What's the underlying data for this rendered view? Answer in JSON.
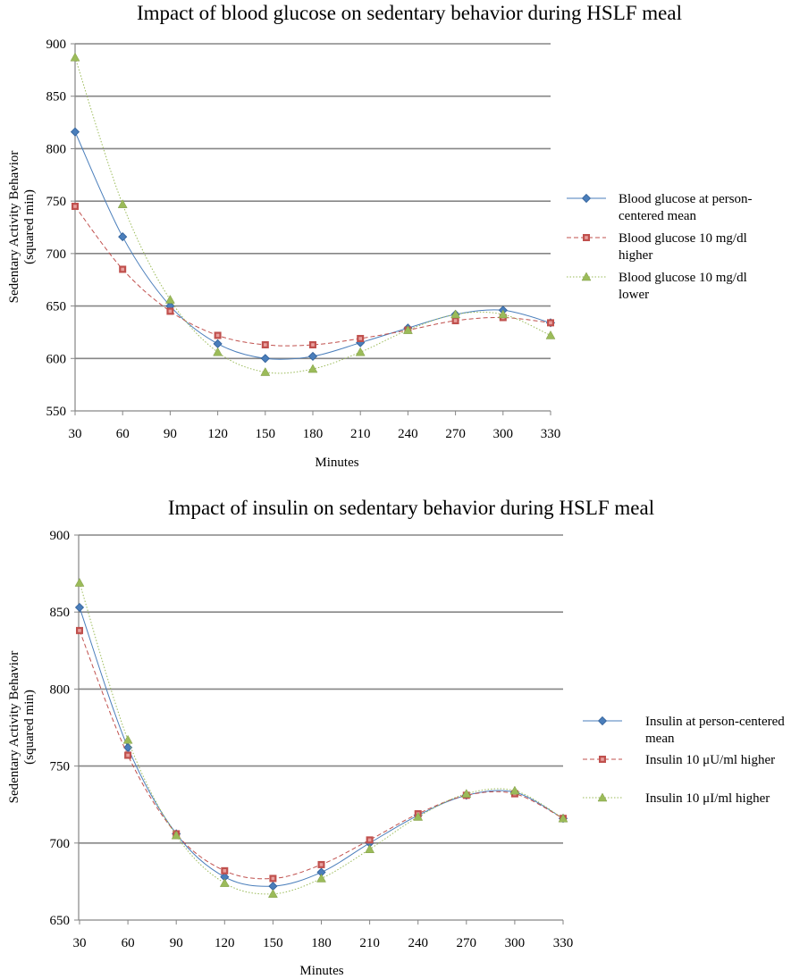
{
  "chart_data": [
    {
      "type": "line",
      "title": "Impact of blood glucose on sedentary behavior during HSLF meal",
      "xlabel": "Minutes",
      "ylabel": [
        "Sedentary Activity Behavior",
        "(squared min)"
      ],
      "x": [
        30,
        60,
        90,
        120,
        150,
        180,
        210,
        240,
        270,
        300,
        330
      ],
      "ylim": [
        550,
        900
      ],
      "yticks": [
        550,
        600,
        650,
        700,
        750,
        800,
        850,
        900
      ],
      "grid": "horizontal",
      "legend_position": "right",
      "series": [
        {
          "name": [
            "Blood glucose at person-",
            "centered mean"
          ],
          "values": [
            816,
            716,
            650,
            614,
            600,
            602,
            615,
            629,
            642,
            646,
            634
          ],
          "color": "#4a7ebb",
          "marker": "diamond",
          "line": "solid"
        },
        {
          "name": [
            "Blood glucose 10 mg/dl",
            "higher"
          ],
          "values": [
            745,
            685,
            645,
            622,
            613,
            613,
            619,
            627,
            636,
            639,
            634
          ],
          "color": "#c0504d",
          "marker": "square",
          "line": "dashed"
        },
        {
          "name": [
            "Blood glucose 10 mg/dl",
            "lower"
          ],
          "values": [
            887,
            747,
            656,
            606,
            587,
            590,
            606,
            627,
            642,
            642,
            622
          ],
          "color": "#9bbb59",
          "marker": "triangle",
          "line": "dotted"
        }
      ]
    },
    {
      "type": "line",
      "title": "Impact of insulin on sedentary behavior during HSLF meal",
      "xlabel": "Minutes",
      "ylabel": [
        "Sedentary Activity Behavior",
        "(squared min)"
      ],
      "x": [
        30,
        60,
        90,
        120,
        150,
        180,
        210,
        240,
        270,
        300,
        330
      ],
      "ylim": [
        650,
        900
      ],
      "yticks": [
        650,
        700,
        750,
        800,
        850,
        900
      ],
      "grid": "horizontal",
      "legend_position": "right",
      "series": [
        {
          "name": [
            "Insulin at person-centered",
            "mean"
          ],
          "values": [
            853,
            762,
            706,
            678,
            672,
            681,
            700,
            718,
            731,
            733,
            716
          ],
          "color": "#4a7ebb",
          "marker": "diamond",
          "line": "solid"
        },
        {
          "name": [
            "Insulin 10 μU/ml higher"
          ],
          "values": [
            838,
            757,
            706,
            682,
            677,
            686,
            702,
            719,
            731,
            732,
            716
          ],
          "color": "#c0504d",
          "marker": "square",
          "line": "dashed"
        },
        {
          "name": [
            "Insulin 10 μI/ml higher"
          ],
          "values": [
            869,
            767,
            705,
            674,
            667,
            677,
            696,
            717,
            732,
            734,
            716
          ],
          "color": "#9bbb59",
          "marker": "triangle",
          "line": "dotted"
        }
      ]
    }
  ]
}
